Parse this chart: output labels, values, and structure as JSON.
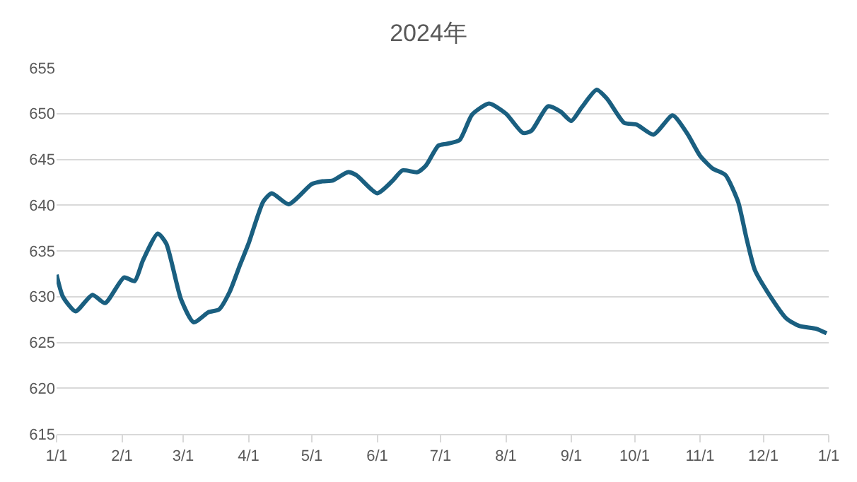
{
  "chart_data": {
    "type": "line",
    "title": "2024年",
    "x": [
      "2024-01-01",
      "2024-01-04",
      "2024-01-10",
      "2024-01-18",
      "2024-01-24",
      "2024-02-02",
      "2024-02-07",
      "2024-02-11",
      "2024-02-18",
      "2024-02-22",
      "2024-02-29",
      "2024-03-06",
      "2024-03-13",
      "2024-03-18",
      "2024-03-23",
      "2024-03-28",
      "2024-04-01",
      "2024-04-08",
      "2024-04-12",
      "2024-04-20",
      "2024-05-01",
      "2024-05-06",
      "2024-05-11",
      "2024-05-18",
      "2024-05-22",
      "2024-06-01",
      "2024-06-08",
      "2024-06-13",
      "2024-06-20",
      "2024-06-24",
      "2024-06-30",
      "2024-07-04",
      "2024-07-10",
      "2024-07-16",
      "2024-07-24",
      "2024-08-01",
      "2024-08-09",
      "2024-08-13",
      "2024-08-21",
      "2024-08-27",
      "2024-09-01",
      "2024-09-06",
      "2024-09-13",
      "2024-09-18",
      "2024-09-26",
      "2024-10-02",
      "2024-10-10",
      "2024-10-19",
      "2024-10-26",
      "2024-11-01",
      "2024-11-07",
      "2024-11-13",
      "2024-11-19",
      "2024-11-23",
      "2024-11-27",
      "2024-12-03",
      "2024-12-12",
      "2024-12-18",
      "2024-12-26",
      "2024-12-31"
    ],
    "series": [
      {
        "color": "#1a5f80",
        "values": [
          632.4,
          630.0,
          628.4,
          630.2,
          629.3,
          632.1,
          631.7,
          634.0,
          636.9,
          635.8,
          629.7,
          627.2,
          628.3,
          628.6,
          630.5,
          633.5,
          635.8,
          640.4,
          641.3,
          640.1,
          642.3,
          642.6,
          642.7,
          643.6,
          643.3,
          641.3,
          642.6,
          643.8,
          643.6,
          644.3,
          646.5,
          646.7,
          647.1,
          649.9,
          651.1,
          650.0,
          647.9,
          648.1,
          650.8,
          650.2,
          649.2,
          650.7,
          652.6,
          651.6,
          649.0,
          648.8,
          647.7,
          649.8,
          647.8,
          645.4,
          644.0,
          643.3,
          640.4,
          636.4,
          632.9,
          630.5,
          627.6,
          626.8,
          626.5,
          626.0
        ]
      }
    ],
    "xlim": [
      "2024-01-01",
      "2025-01-01"
    ],
    "xticks": [
      {
        "value": "2024-01-01",
        "label": "1/1"
      },
      {
        "value": "2024-02-01",
        "label": "2/1"
      },
      {
        "value": "2024-03-01",
        "label": "3/1"
      },
      {
        "value": "2024-04-01",
        "label": "4/1"
      },
      {
        "value": "2024-05-01",
        "label": "5/1"
      },
      {
        "value": "2024-06-01",
        "label": "6/1"
      },
      {
        "value": "2024-07-01",
        "label": "7/1"
      },
      {
        "value": "2024-08-01",
        "label": "8/1"
      },
      {
        "value": "2024-09-01",
        "label": "9/1"
      },
      {
        "value": "2024-10-01",
        "label": "10/1"
      },
      {
        "value": "2024-11-01",
        "label": "11/1"
      },
      {
        "value": "2024-12-01",
        "label": "12/1"
      },
      {
        "value": "2025-01-01",
        "label": "1/1"
      }
    ],
    "ylim": [
      615,
      655
    ],
    "yticks": [
      615,
      620,
      625,
      630,
      635,
      640,
      645,
      650,
      655
    ],
    "grid": "y",
    "marker": "none",
    "line_style": "solid"
  }
}
